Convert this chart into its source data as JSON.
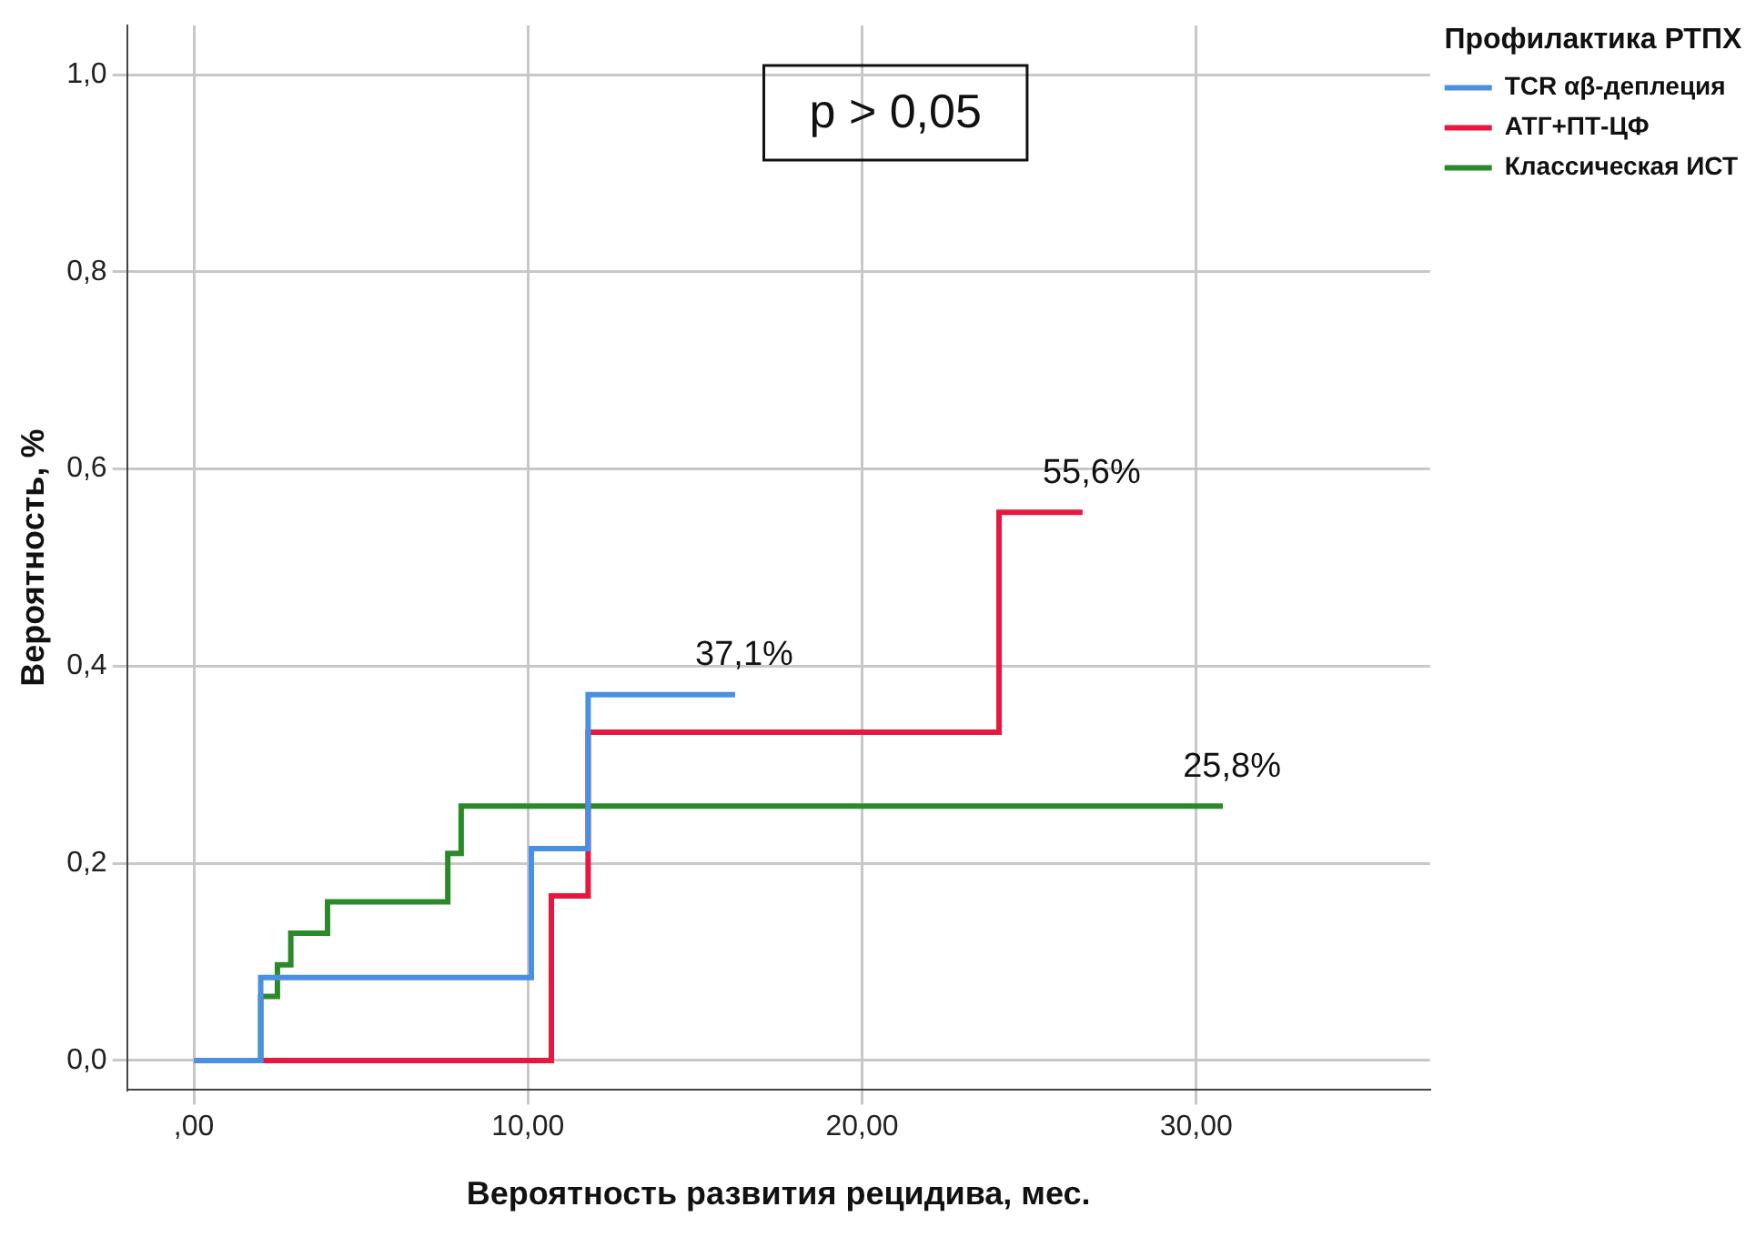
{
  "chart_data": {
    "type": "step",
    "xlabel": "Вероятность развития рецидива, мес.",
    "ylabel": "Вероятность, %",
    "legend_title": "Профилактика РТПХ",
    "legend": "top right",
    "grid": true,
    "marker": "none",
    "xlim": [
      -2,
      37
    ],
    "xticks": [
      {
        "value": 0,
        "label": ",00"
      },
      {
        "value": 10,
        "label": "10,00"
      },
      {
        "value": 20,
        "label": "20,00"
      },
      {
        "value": 30,
        "label": "30,00"
      }
    ],
    "ylim": [
      -0.03,
      1.05
    ],
    "yticks": [
      {
        "value": 0,
        "label": "0,0"
      },
      {
        "value": 0.2,
        "label": "0,2"
      },
      {
        "value": 0.4,
        "label": "0,4"
      },
      {
        "value": 0.6,
        "label": "0,6"
      },
      {
        "value": 0.8,
        "label": "0,8"
      },
      {
        "value": 1,
        "label": "1,0"
      }
    ],
    "series": [
      {
        "name": "TCR αβ-деплеция",
        "color": "#4a90e2",
        "x": [
          0,
          2,
          10.1,
          11.8,
          16.2
        ],
        "values": [
          0,
          0.084,
          0.215,
          0.371,
          0.371
        ]
      },
      {
        "name": "АТГ+ПТ-ЦФ",
        "color": "#e8173f",
        "x": [
          1.8,
          10.7,
          11.8,
          24.1,
          26.6
        ],
        "values": [
          0,
          0.167,
          0.333,
          0.556,
          0.556
        ]
      },
      {
        "name": "Классическая ИСТ",
        "color": "#2a8a2a",
        "x": [
          1.9,
          2,
          2.5,
          2.9,
          4,
          7.6,
          8,
          30.8
        ],
        "values": [
          0,
          0.065,
          0.097,
          0.129,
          0.161,
          0.21,
          0.258,
          0.258
        ]
      }
    ],
    "annotations": [
      "p > 0,05",
      {
        "text": "37,1%",
        "x": 16.2,
        "y": 0.371
      },
      {
        "text": "55,6%",
        "x": 26.6,
        "y": 0.556
      },
      {
        "text": "25,8%",
        "x": 30.8,
        "y": 0.258
      }
    ]
  }
}
